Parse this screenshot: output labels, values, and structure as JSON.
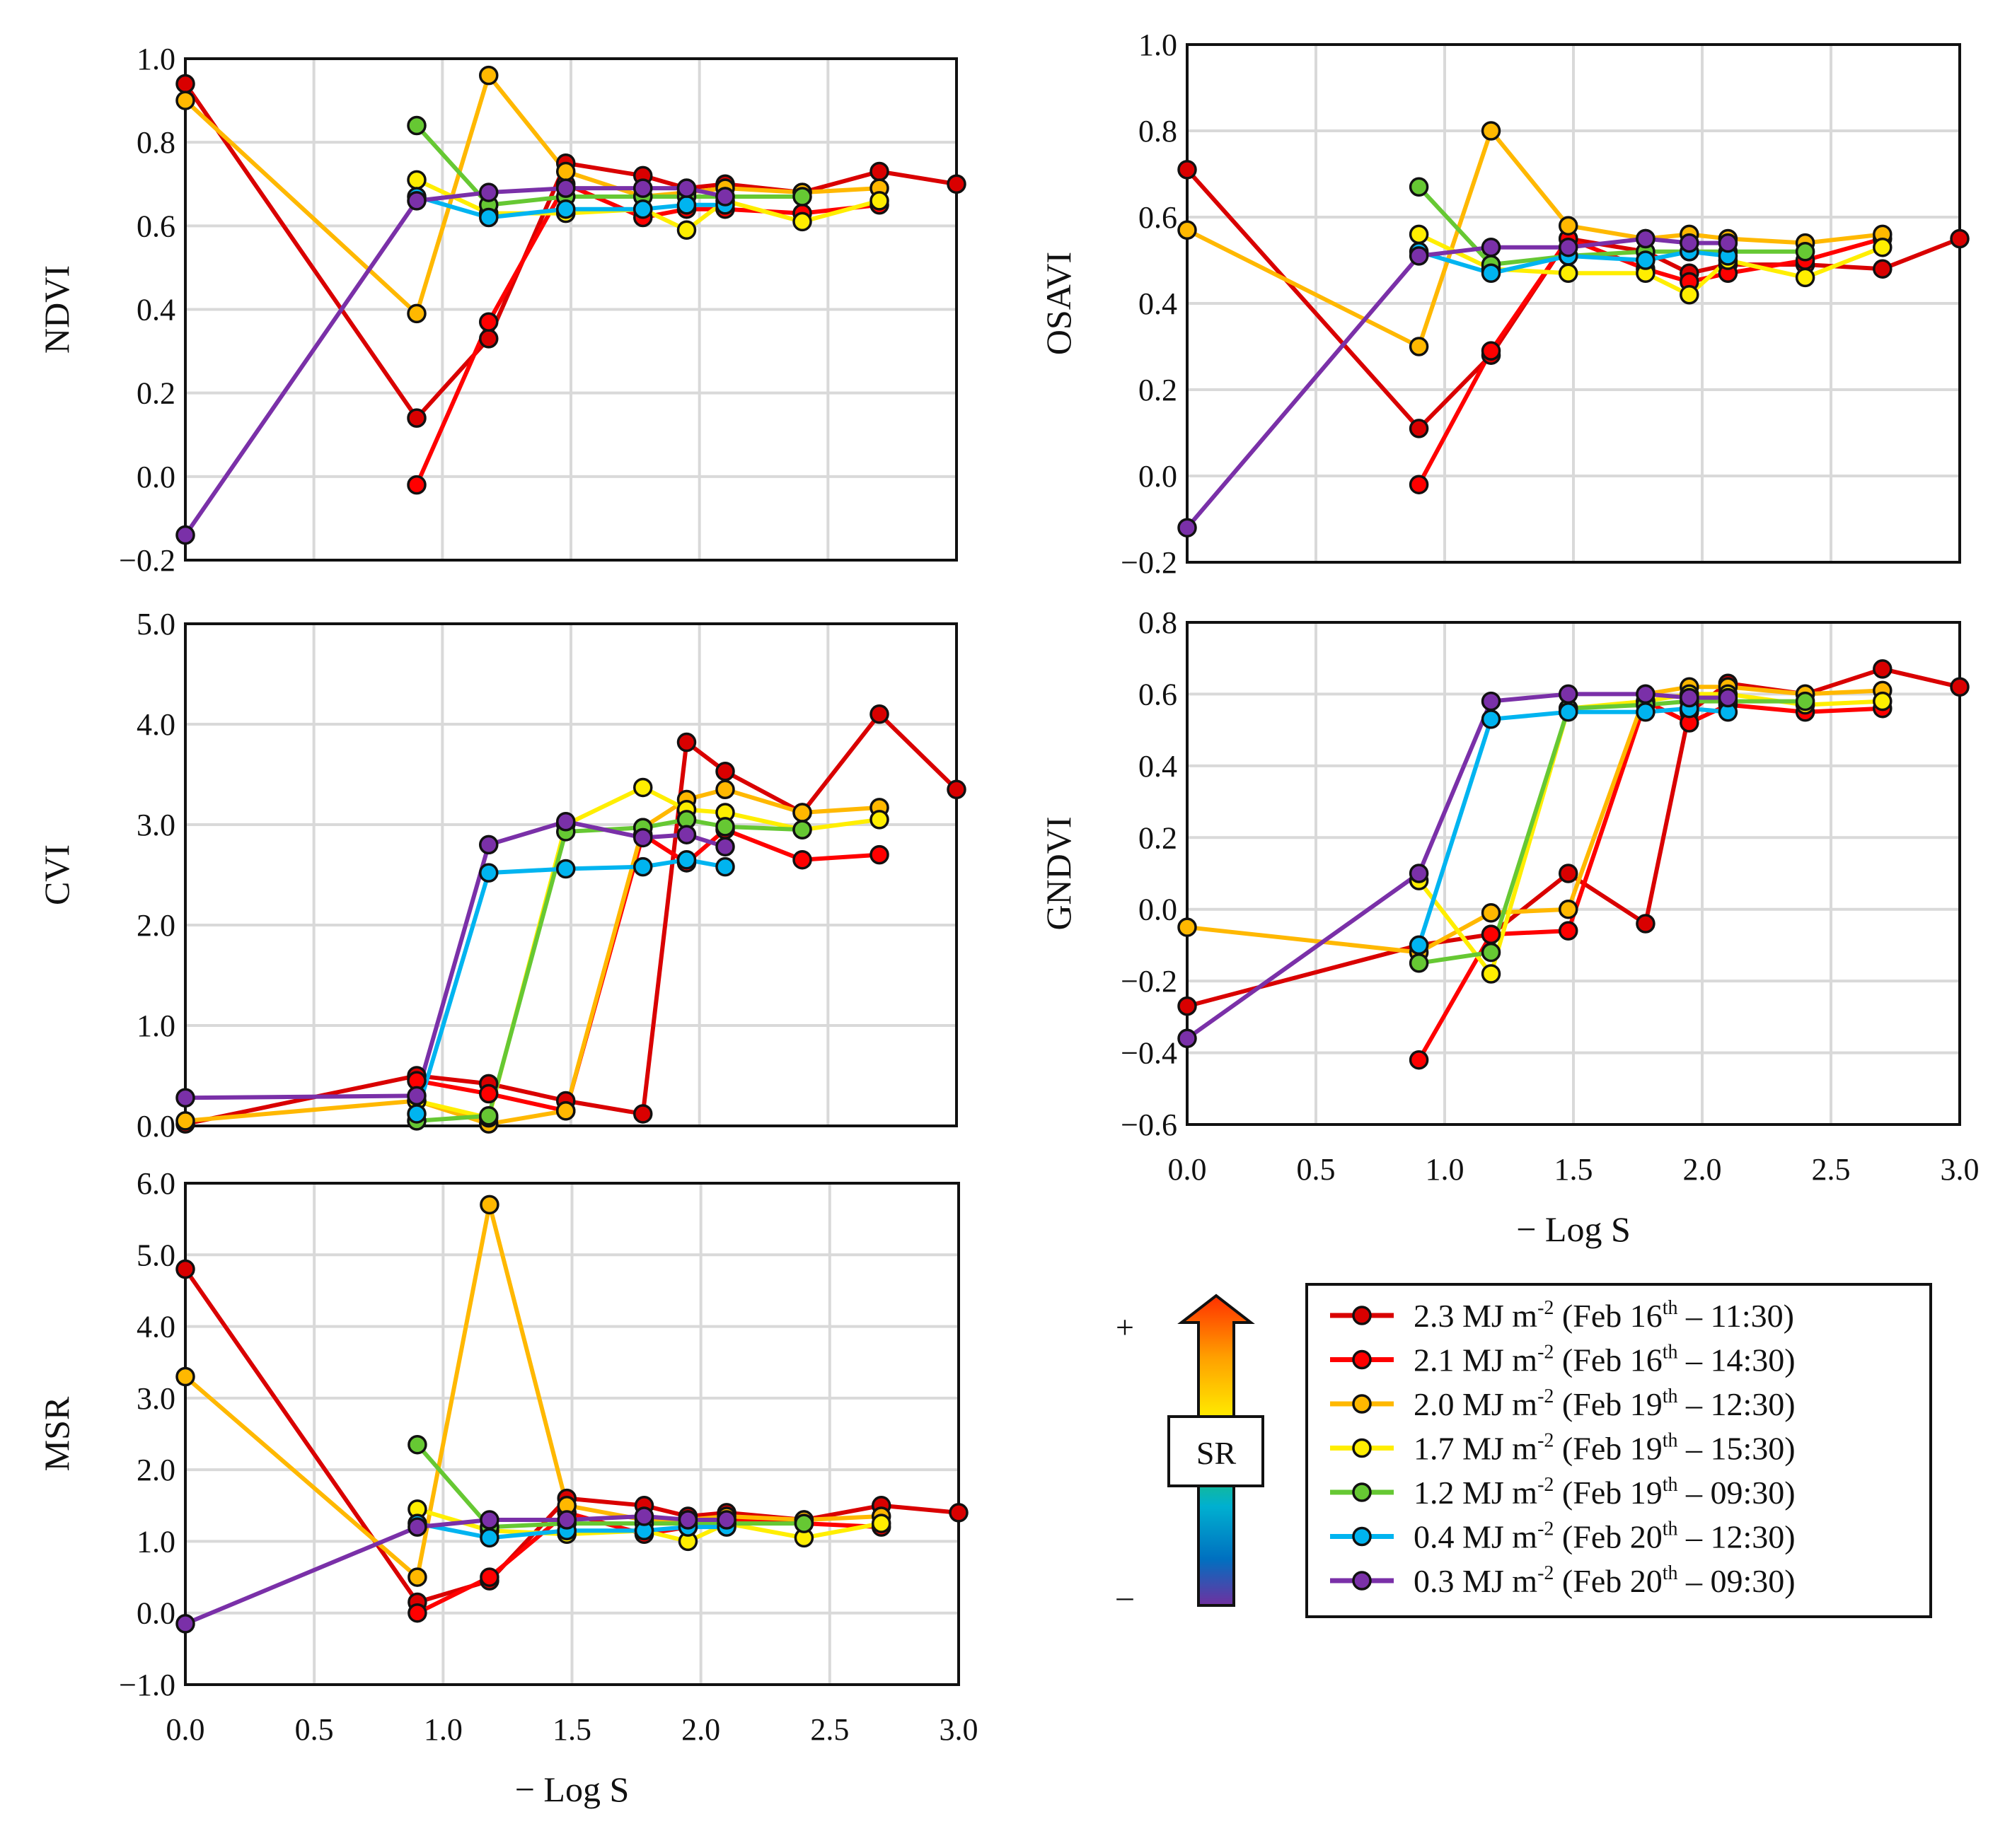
{
  "chart_data": {
    "type": "line",
    "xlabel": "− Log S",
    "xlim": [
      0,
      3
    ],
    "xticks": [
      "0.0",
      "0.5",
      "1.0",
      "1.5",
      "2.0",
      "2.5",
      "3.0"
    ],
    "grid": true,
    "series": [
      {
        "name": "2.3 MJ m",
        "sup": "-2",
        "date": " (Feb 16",
        "th": "th",
        "time": " – 11:30)",
        "color": "#d90000",
        "x": [
          0,
          0.9,
          1.18,
          1.48,
          1.78,
          1.95,
          2.1,
          2.4,
          2.7,
          3.0
        ]
      },
      {
        "name": "2.1 MJ m",
        "sup": "-2",
        "date": " (Feb 16",
        "th": "th",
        "time": " – 14:30)",
        "color": "#ff0000",
        "x": [
          0.9,
          1.18,
          1.48,
          1.78,
          1.95,
          2.1,
          2.4,
          2.7
        ]
      },
      {
        "name": "2.0 MJ m",
        "sup": "-2",
        "date": " (Feb 19",
        "th": "th",
        "time": " – 12:30)",
        "color": "#ffb800",
        "x": [
          0,
          0.9,
          1.18,
          1.48,
          1.78,
          1.95,
          2.1,
          2.4,
          2.7
        ]
      },
      {
        "name": "1.7 MJ m",
        "sup": "-2",
        "date": " (Feb 19",
        "th": "th",
        "time": " – 15:30)",
        "color": "#ffee00",
        "x": [
          0.9,
          1.18,
          1.48,
          1.78,
          1.95,
          2.1,
          2.4,
          2.7
        ]
      },
      {
        "name": "1.2 MJ m",
        "sup": "-2",
        "date": " (Feb 19",
        "th": "th",
        "time": " – 09:30)",
        "color": "#66c833",
        "x": [
          0.9,
          1.18,
          1.48,
          1.78,
          1.95,
          2.1,
          2.4
        ]
      },
      {
        "name": "0.4 MJ m",
        "sup": "-2",
        "date": " (Feb 20",
        "th": "th",
        "time": " – 12:30)",
        "color": "#00b4f0",
        "x": [
          0.9,
          1.18,
          1.48,
          1.78,
          1.95,
          2.1
        ]
      },
      {
        "name": "0.3 MJ m",
        "sup": "-2",
        "date": " (Feb 20",
        "th": "th",
        "time": " – 09:30)",
        "color": "#7a30a8",
        "x": [
          0,
          0.9,
          1.18,
          1.48,
          1.78,
          1.95,
          2.1
        ]
      }
    ],
    "panels": [
      {
        "id": "ndvi",
        "ylabel": "NDVI",
        "ylim": [
          -0.2,
          1.0
        ],
        "ystep": 0.2,
        "yticks": [
          "−0.2",
          "0.0",
          "0.2",
          "0.4",
          "0.6",
          "0.8",
          "1.0"
        ],
        "show_xticks": false,
        "values": [
          [
            0.94,
            0.14,
            0.33,
            0.75,
            0.72,
            0.69,
            0.7,
            0.68,
            0.73,
            0.7
          ],
          [
            -0.02,
            0.37,
            0.7,
            0.62,
            0.64,
            0.64,
            0.63,
            0.65
          ],
          [
            0.9,
            0.39,
            0.96,
            0.73,
            0.67,
            0.68,
            0.69,
            0.68,
            0.69
          ],
          [
            0.71,
            0.63,
            0.63,
            0.64,
            0.59,
            0.66,
            0.61,
            0.66
          ],
          [
            0.84,
            0.65,
            0.67,
            0.67,
            0.67,
            0.67,
            0.67
          ],
          [
            0.67,
            0.62,
            0.64,
            0.64,
            0.65,
            0.65
          ],
          [
            -0.14,
            0.66,
            0.68,
            0.69,
            0.69,
            0.69,
            0.67
          ]
        ]
      },
      {
        "id": "osavi",
        "ylabel": "OSAVI",
        "ylim": [
          -0.2,
          1.0
        ],
        "ystep": 0.2,
        "yticks": [
          "−0.2",
          "0.0",
          "0.2",
          "0.4",
          "0.6",
          "0.8",
          "1.0"
        ],
        "show_xticks": false,
        "values": [
          [
            0.71,
            0.11,
            0.28,
            0.55,
            0.52,
            0.47,
            0.49,
            0.49,
            0.48,
            0.55
          ],
          [
            -0.02,
            0.29,
            0.55,
            0.48,
            0.45,
            0.47,
            0.5,
            0.55
          ],
          [
            0.57,
            0.3,
            0.8,
            0.58,
            0.55,
            0.56,
            0.55,
            0.54,
            0.56
          ],
          [
            0.56,
            0.48,
            0.47,
            0.47,
            0.42,
            0.5,
            0.46,
            0.53
          ],
          [
            0.67,
            0.49,
            0.51,
            0.52,
            0.52,
            0.52,
            0.52
          ],
          [
            0.52,
            0.47,
            0.51,
            0.5,
            0.52,
            0.51
          ],
          [
            -0.12,
            0.51,
            0.53,
            0.53,
            0.55,
            0.54,
            0.54
          ]
        ]
      },
      {
        "id": "cvi",
        "ylabel": "CVI",
        "ylim": [
          0,
          5
        ],
        "ystep": 1,
        "yticks": [
          "0.0",
          "1.0",
          "2.0",
          "3.0",
          "4.0",
          "5.0"
        ],
        "show_xticks": false,
        "values": [
          [
            0.02,
            0.5,
            0.42,
            0.25,
            0.12,
            3.82,
            3.53,
            3.12,
            4.1,
            3.35
          ],
          [
            0.45,
            0.32,
            0.15,
            2.9,
            2.62,
            2.95,
            2.65,
            2.7
          ],
          [
            0.05,
            0.25,
            0.02,
            0.15,
            2.97,
            3.25,
            3.35,
            3.12,
            3.17
          ],
          [
            0.25,
            0.08,
            3.0,
            3.37,
            3.15,
            3.12,
            2.95,
            3.05
          ],
          [
            0.05,
            0.1,
            2.93,
            2.97,
            3.05,
            2.98,
            2.95
          ],
          [
            0.12,
            2.52,
            2.56,
            2.58,
            2.65,
            2.58
          ],
          [
            0.28,
            0.3,
            2.8,
            3.03,
            2.87,
            2.9,
            2.78
          ]
        ]
      },
      {
        "id": "gndvi",
        "ylabel": "GNDVI",
        "ylim": [
          -0.6,
          0.8
        ],
        "ystep": 0.2,
        "yticks": [
          "−0.6",
          "−0.4",
          "−0.2",
          "0.0",
          "0.2",
          "0.4",
          "0.6",
          "0.8"
        ],
        "show_xticks": true,
        "values": [
          [
            -0.27,
            -0.1,
            -0.07,
            0.1,
            -0.04,
            0.55,
            0.63,
            0.6,
            0.67,
            0.62
          ],
          [
            -0.42,
            -0.07,
            -0.06,
            0.58,
            0.52,
            0.57,
            0.55,
            0.56
          ],
          [
            -0.05,
            -0.12,
            -0.01,
            0.0,
            0.6,
            0.62,
            0.62,
            0.6,
            0.61
          ],
          [
            0.08,
            -0.18,
            0.56,
            0.58,
            0.6,
            0.6,
            0.57,
            0.58
          ],
          [
            -0.15,
            -0.12,
            0.56,
            0.57,
            0.58,
            0.58,
            0.58
          ],
          [
            -0.1,
            0.53,
            0.55,
            0.55,
            0.56,
            0.55
          ],
          [
            -0.36,
            0.1,
            0.58,
            0.6,
            0.6,
            0.59,
            0.59
          ]
        ]
      },
      {
        "id": "msr",
        "ylabel": "MSR",
        "ylim": [
          -1,
          6
        ],
        "ystep": 1,
        "yticks": [
          "−1.0",
          "0.0",
          "1.0",
          "2.0",
          "3.0",
          "4.0",
          "5.0",
          "6.0"
        ],
        "show_xticks": true,
        "values": [
          [
            4.8,
            0.15,
            0.45,
            1.6,
            1.5,
            1.35,
            1.4,
            1.3,
            1.5,
            1.4
          ],
          [
            0.0,
            0.5,
            1.4,
            1.1,
            1.2,
            1.3,
            1.25,
            1.2
          ],
          [
            3.3,
            0.5,
            5.7,
            1.5,
            1.3,
            1.3,
            1.35,
            1.3,
            1.35
          ],
          [
            1.45,
            1.15,
            1.1,
            1.15,
            1.0,
            1.25,
            1.05,
            1.25
          ],
          [
            2.35,
            1.2,
            1.25,
            1.25,
            1.25,
            1.25,
            1.25
          ],
          [
            1.25,
            1.05,
            1.15,
            1.15,
            1.2,
            1.2
          ],
          [
            -0.15,
            1.2,
            1.3,
            1.3,
            1.35,
            1.3,
            1.3
          ]
        ]
      }
    ],
    "sr_arrow": {
      "label": "SR",
      "plus": "+",
      "minus": "–"
    }
  }
}
